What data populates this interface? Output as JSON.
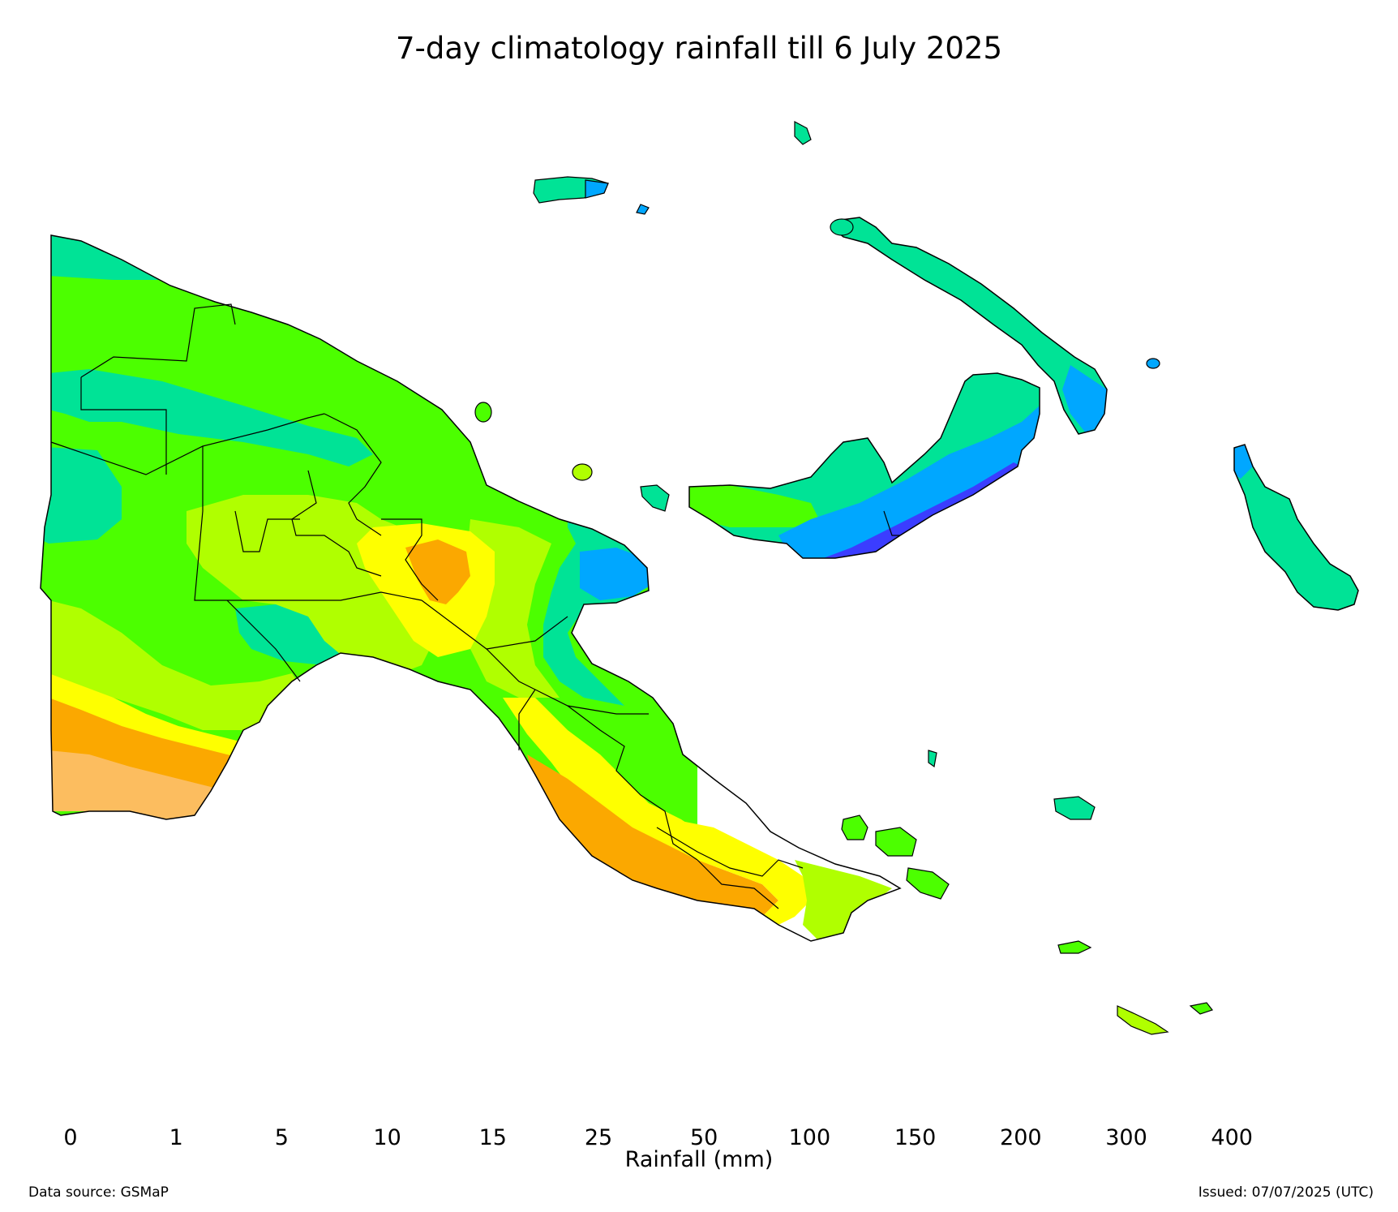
{
  "title": "7-day climatology rainfall till 6 July 2025",
  "colorbar": {
    "label": "Rainfall (mm)",
    "ticks": [
      "0",
      "1",
      "5",
      "10",
      "15",
      "25",
      "50",
      "100",
      "150",
      "200",
      "300",
      "400"
    ],
    "bins": [
      {
        "range": "0-1",
        "color": "#ffffff"
      },
      {
        "range": "1-5",
        "color": "#fcbd5f"
      },
      {
        "range": "5-10",
        "color": "#fba800"
      },
      {
        "range": "10-15",
        "color": "#feff00"
      },
      {
        "range": "15-25",
        "color": "#b0ff00"
      },
      {
        "range": "25-50",
        "color": "#4cff00"
      },
      {
        "range": "50-100",
        "color": "#00e396"
      },
      {
        "range": "100-150",
        "color": "#00a7ff"
      },
      {
        "range": "150-200",
        "color": "#3b3dff"
      },
      {
        "range": "200-300",
        "color": "#a700ff"
      },
      {
        "range": "300-400",
        "color": "#ff00ff"
      },
      {
        "range": ">400",
        "color": "#ff4fa0"
      }
    ]
  },
  "footer": {
    "source": "Data source: GSMaP",
    "issued": "Issued: 07/07/2025 (UTC)"
  }
}
